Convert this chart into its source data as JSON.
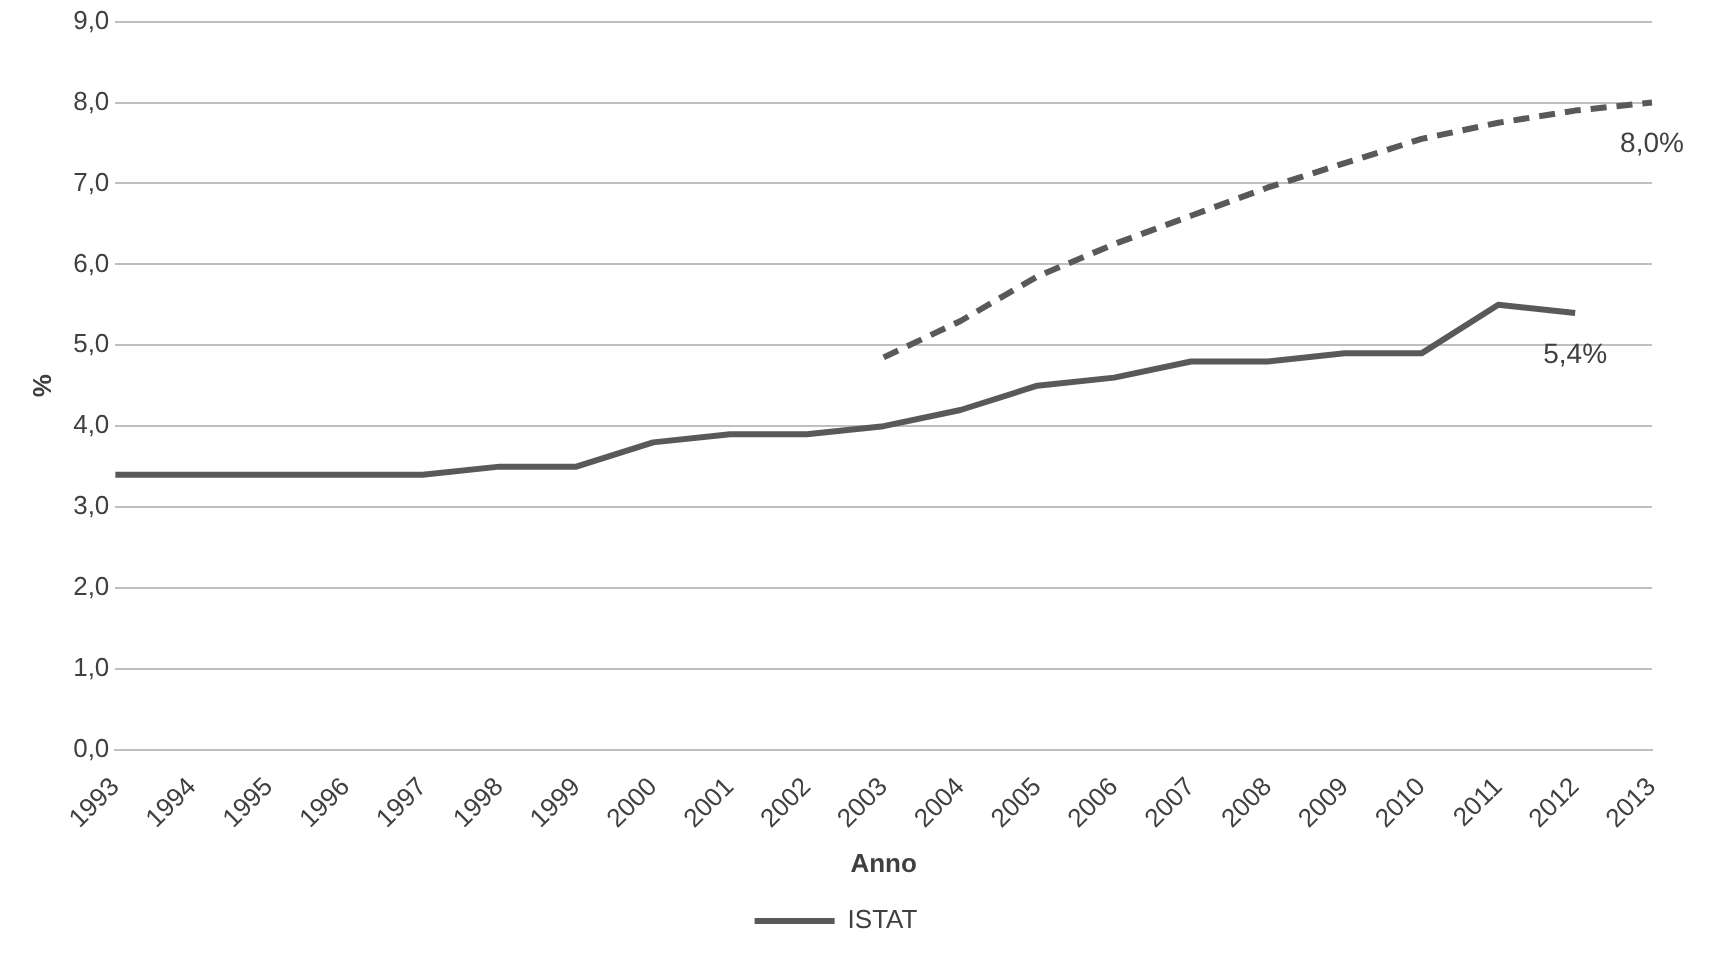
{
  "chart_data": {
    "type": "line",
    "xlabel": "Anno",
    "ylabel": "%",
    "categories": [
      "1993",
      "1994",
      "1995",
      "1996",
      "1997",
      "1998",
      "1999",
      "2000",
      "2001",
      "2002",
      "2003",
      "2004",
      "2005",
      "2006",
      "2007",
      "2008",
      "2009",
      "2010",
      "2011",
      "2012",
      "2013"
    ],
    "series": [
      {
        "name": "ISTAT",
        "color": "#595959",
        "line_style": "solid",
        "values": [
          3.4,
          3.4,
          3.4,
          3.4,
          3.4,
          3.5,
          3.5,
          3.8,
          3.9,
          3.9,
          4.0,
          4.2,
          4.5,
          4.6,
          4.8,
          4.8,
          4.9,
          4.9,
          5.5,
          5.4,
          null
        ],
        "value_labels": [
          null,
          null,
          null,
          null,
          null,
          null,
          null,
          null,
          null,
          null,
          null,
          null,
          null,
          null,
          null,
          null,
          null,
          null,
          null,
          "5,4%",
          null
        ]
      },
      {
        "color": "#595959",
        "line_style": "dashed",
        "values": [
          null,
          null,
          null,
          null,
          null,
          null,
          null,
          null,
          null,
          null,
          4.85,
          5.3,
          5.85,
          6.25,
          6.6,
          6.95,
          7.25,
          7.55,
          7.75,
          7.9,
          8.0
        ],
        "value_labels": [
          null,
          null,
          null,
          null,
          null,
          null,
          null,
          null,
          null,
          null,
          null,
          null,
          null,
          null,
          null,
          null,
          null,
          null,
          null,
          null,
          "8,0%"
        ]
      }
    ],
    "ylim": [
      0,
      9
    ],
    "yticks": [
      {
        "value": 0,
        "label": "0,0"
      },
      {
        "value": 1,
        "label": "1,0"
      },
      {
        "value": 2,
        "label": "2,0"
      },
      {
        "value": 3,
        "label": "3,0"
      },
      {
        "value": 4,
        "label": "4,0"
      },
      {
        "value": 5,
        "label": "5,0"
      },
      {
        "value": 6,
        "label": "6,0"
      },
      {
        "value": 7,
        "label": "7,0"
      },
      {
        "value": 8,
        "label": "8,0"
      },
      {
        "value": 9,
        "label": "9,0"
      }
    ],
    "grid": "y",
    "legend": "bottom",
    "marker": "none"
  }
}
